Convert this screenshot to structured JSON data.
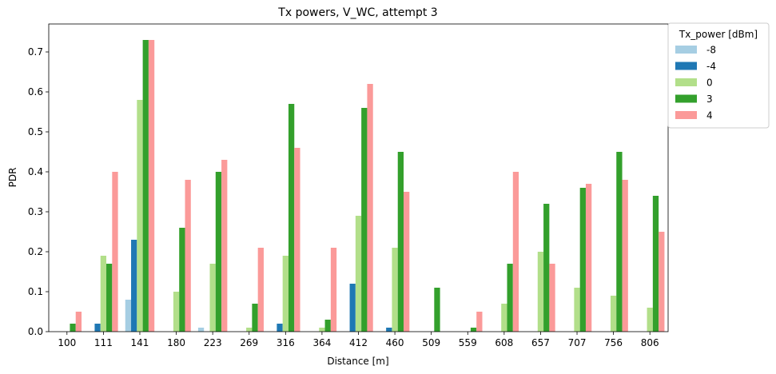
{
  "chart_data": {
    "type": "bar",
    "title": "Tx powers, V_WC, attempt 3",
    "xlabel": "Distance [m]",
    "ylabel": "PDR",
    "ylim": [
      0,
      0.77
    ],
    "yticks": [
      "0.0",
      "0.1",
      "0.2",
      "0.3",
      "0.4",
      "0.5",
      "0.6",
      "0.7"
    ],
    "grid": false,
    "legend_position": "outside-top-right",
    "legend_title": "Tx_power [dBm]",
    "categories": [
      "100",
      "111",
      "141",
      "180",
      "223",
      "269",
      "316",
      "364",
      "412",
      "460",
      "509",
      "559",
      "608",
      "657",
      "707",
      "756",
      "806"
    ],
    "series": [
      {
        "name": "-8",
        "color": "#a6cee3",
        "values": [
          0,
          0,
          0.08,
          0,
          0.01,
          0,
          0,
          0,
          0,
          0,
          0,
          0,
          0,
          0,
          0,
          0,
          0
        ]
      },
      {
        "name": "-4",
        "color": "#1f78b4",
        "values": [
          0,
          0.02,
          0.23,
          0,
          0,
          0,
          0.02,
          0,
          0.12,
          0.01,
          0,
          0,
          0,
          0,
          0,
          0,
          0
        ]
      },
      {
        "name": "0",
        "color": "#b2df8a",
        "values": [
          0,
          0.19,
          0.58,
          0.1,
          0.17,
          0.01,
          0.19,
          0.01,
          0.29,
          0.21,
          0,
          0,
          0.07,
          0.2,
          0.11,
          0.09,
          0.06
        ]
      },
      {
        "name": "3",
        "color": "#33a02c",
        "values": [
          0.02,
          0.17,
          0.73,
          0.26,
          0.4,
          0.07,
          0.57,
          0.03,
          0.56,
          0.45,
          0.11,
          0.01,
          0.17,
          0.32,
          0.36,
          0.45,
          0.34
        ]
      },
      {
        "name": "4",
        "color": "#fb9a99",
        "values": [
          0.05,
          0.4,
          0.73,
          0.38,
          0.43,
          0.21,
          0.46,
          0.21,
          0.62,
          0.35,
          0,
          0.05,
          0.4,
          0.17,
          0.37,
          0.38,
          0.25
        ]
      }
    ]
  }
}
